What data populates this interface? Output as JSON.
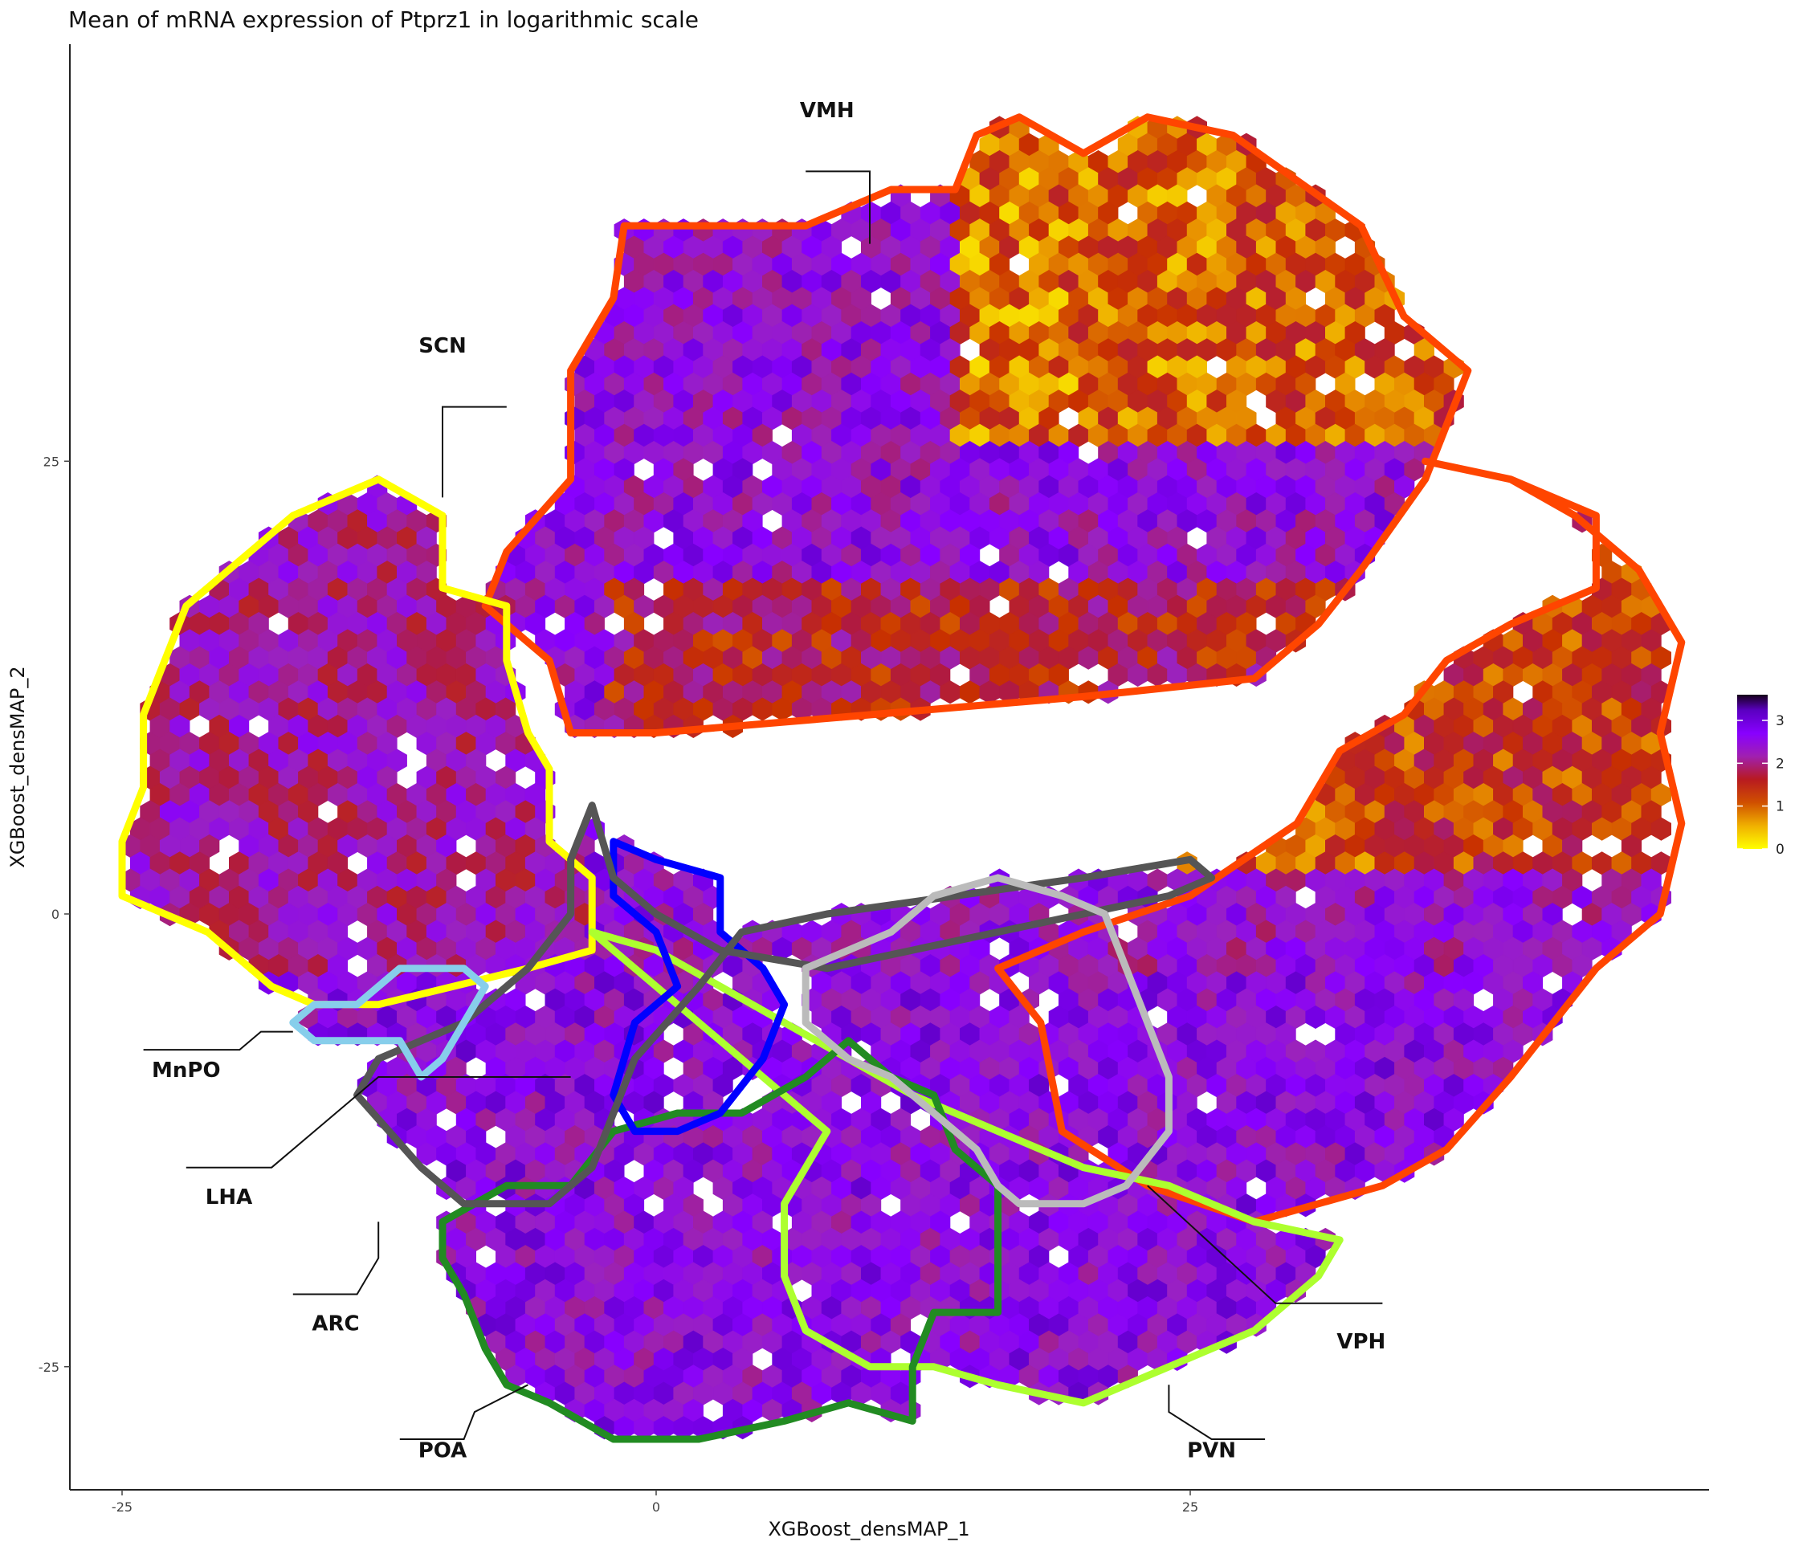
{
  "chart_data": {
    "type": "heatmap",
    "subtype": "hexbin scatter with region outlines",
    "title": "Mean of mRNA expression of Ptprz1 in logarithmic scale",
    "xlabel": "XGBoost_densMAP_1",
    "ylabel": "XGBoost_densMAP_2",
    "xlim": [
      -27.5,
      49
    ],
    "ylim": [
      -32,
      48
    ],
    "x_ticks": [
      -25,
      0,
      25
    ],
    "y_ticks": [
      -25,
      0,
      25
    ],
    "x_tick_labels": [
      "-25",
      "0",
      "25"
    ],
    "y_tick_labels": [
      "-25",
      "0",
      "25"
    ],
    "grid": false,
    "legend": {
      "placement": "right",
      "type": "colorbar",
      "range": [
        0,
        3.6
      ],
      "ticks": [
        0,
        1,
        2,
        3
      ],
      "tick_labels": [
        "0",
        "1",
        "2",
        "3"
      ],
      "colors": [
        "#ffff00",
        "#e88a00",
        "#c82a00",
        "#a819a6",
        "#8a00ff",
        "#1a0020"
      ]
    },
    "regions": [
      {
        "name": "VMH",
        "color": "#ff4500",
        "value_level": "high in center, low in top-right lobe",
        "outline": [
          [
            -1.5,
            38
          ],
          [
            7,
            38
          ],
          [
            11,
            40
          ],
          [
            14,
            40
          ],
          [
            15,
            43
          ],
          [
            17,
            44
          ],
          [
            20,
            42
          ],
          [
            23,
            44
          ],
          [
            27,
            43
          ],
          [
            33,
            38
          ],
          [
            35,
            33
          ],
          [
            38,
            30
          ],
          [
            36,
            24
          ],
          [
            33,
            19
          ],
          [
            31,
            16
          ],
          [
            28,
            13
          ],
          [
            20,
            12
          ],
          [
            10,
            11
          ],
          [
            0,
            10
          ],
          [
            -4,
            10
          ],
          [
            -5,
            14
          ],
          [
            -8,
            17
          ],
          [
            -7,
            20
          ],
          [
            -4,
            24
          ],
          [
            -4,
            30
          ],
          [
            -2,
            34
          ],
          [
            -1.5,
            38
          ]
        ]
      },
      {
        "name": "SCN",
        "color": "#ffff00",
        "value_level": "mid (purple)",
        "outline": [
          [
            -13,
            24
          ],
          [
            -17,
            22
          ],
          [
            -19,
            20
          ],
          [
            -22,
            17
          ],
          [
            -24,
            11
          ],
          [
            -24,
            7
          ],
          [
            -25,
            4
          ],
          [
            -25,
            1
          ],
          [
            -21,
            -1
          ],
          [
            -18,
            -4
          ],
          [
            -16,
            -5
          ],
          [
            -13,
            -5
          ],
          [
            -6,
            -3
          ],
          [
            -3,
            -2
          ],
          [
            -3,
            2
          ],
          [
            -5,
            4
          ],
          [
            -5,
            8
          ],
          [
            -6,
            10
          ],
          [
            -7,
            14
          ],
          [
            -7,
            17
          ],
          [
            -10,
            18
          ],
          [
            -10,
            22
          ],
          [
            -13,
            24
          ]
        ]
      },
      {
        "name": "VPH",
        "color": "#ff4500",
        "value_level": "low-mid (orange/red)",
        "outline": [
          [
            36,
            25
          ],
          [
            40,
            24
          ],
          [
            43,
            22
          ],
          [
            46,
            19
          ],
          [
            48,
            15
          ],
          [
            47,
            10
          ],
          [
            48,
            5
          ],
          [
            47,
            0
          ],
          [
            44,
            -3
          ],
          [
            42,
            -6
          ],
          [
            40,
            -9
          ],
          [
            37,
            -13
          ],
          [
            34,
            -15
          ],
          [
            28,
            -17
          ],
          [
            23,
            -15
          ],
          [
            19,
            -12
          ],
          [
            18,
            -6
          ],
          [
            16,
            -3
          ],
          [
            20,
            -1
          ],
          [
            25,
            1
          ],
          [
            30,
            5
          ],
          [
            32,
            9
          ],
          [
            35,
            11
          ],
          [
            37,
            14
          ],
          [
            40,
            16
          ],
          [
            44,
            18
          ],
          [
            44,
            22
          ],
          [
            40,
            24
          ],
          [
            36,
            25
          ]
        ]
      },
      {
        "name": "PVN",
        "color": "#adff2f",
        "value_level": "mid-high (purple)",
        "outline": [
          [
            -3,
            -1
          ],
          [
            0,
            -2
          ],
          [
            3,
            -4
          ],
          [
            6,
            -6
          ],
          [
            9,
            -8
          ],
          [
            12,
            -10
          ],
          [
            16,
            -12
          ],
          [
            20,
            -14
          ],
          [
            24,
            -15
          ],
          [
            28,
            -17
          ],
          [
            32,
            -18
          ],
          [
            31,
            -20
          ],
          [
            28,
            -23
          ],
          [
            24,
            -25
          ],
          [
            20,
            -27
          ],
          [
            16,
            -26
          ],
          [
            13,
            -25
          ],
          [
            10,
            -25
          ],
          [
            7,
            -23
          ],
          [
            6,
            -20
          ],
          [
            6,
            -16
          ],
          [
            8,
            -12
          ],
          [
            5,
            -9
          ],
          [
            2,
            -6
          ],
          [
            -1,
            -3
          ],
          [
            -3,
            -1
          ]
        ]
      },
      {
        "name": "POA",
        "color": "#228b22",
        "value_level": "mid-high (purple)",
        "outline": [
          [
            -10,
            -17
          ],
          [
            -7,
            -15
          ],
          [
            -4,
            -15
          ],
          [
            -2,
            -12
          ],
          [
            1,
            -11
          ],
          [
            4,
            -11
          ],
          [
            7,
            -9
          ],
          [
            9,
            -7
          ],
          [
            11,
            -9
          ],
          [
            13,
            -10
          ],
          [
            14,
            -13
          ],
          [
            16,
            -15
          ],
          [
            16,
            -22
          ],
          [
            13,
            -22
          ],
          [
            12,
            -25
          ],
          [
            12,
            -28
          ],
          [
            9,
            -27
          ],
          [
            6,
            -28
          ],
          [
            2,
            -29
          ],
          [
            -2,
            -29
          ],
          [
            -5,
            -27
          ],
          [
            -7,
            -26
          ],
          [
            -8,
            -24
          ],
          [
            -9,
            -21
          ],
          [
            -10,
            -19
          ],
          [
            -10,
            -17
          ]
        ]
      },
      {
        "name": "ARC",
        "color": "#0000ff",
        "value_level": "mid (purple)",
        "outline": [
          [
            -2,
            4
          ],
          [
            0,
            3
          ],
          [
            3,
            2
          ],
          [
            3,
            -1
          ],
          [
            5,
            -3
          ],
          [
            6,
            -5
          ],
          [
            5,
            -8
          ],
          [
            3,
            -11
          ],
          [
            1,
            -12
          ],
          [
            -1,
            -12
          ],
          [
            -2,
            -10
          ],
          [
            -1,
            -6
          ],
          [
            1,
            -4
          ],
          [
            0,
            -1
          ],
          [
            -2,
            1
          ],
          [
            -2,
            4
          ]
        ]
      },
      {
        "name": "LHA",
        "color": "#555555",
        "value_level": "mid (purple)",
        "outline": [
          [
            -3,
            6
          ],
          [
            -2,
            2
          ],
          [
            0,
            0
          ],
          [
            3,
            -2
          ],
          [
            8,
            -3
          ],
          [
            12,
            -2
          ],
          [
            16,
            -1
          ],
          [
            20,
            0
          ],
          [
            24,
            1
          ],
          [
            26,
            2
          ],
          [
            25,
            3
          ],
          [
            20,
            2
          ],
          [
            14,
            1
          ],
          [
            8,
            0
          ],
          [
            4,
            -1
          ],
          [
            2,
            -4
          ],
          [
            -1,
            -8
          ],
          [
            -3,
            -14
          ],
          [
            -5,
            -16
          ],
          [
            -9,
            -16
          ],
          [
            -11,
            -14
          ],
          [
            -14,
            -10
          ],
          [
            -13,
            -8
          ],
          [
            -9,
            -6
          ],
          [
            -6,
            -3
          ],
          [
            -4,
            0
          ],
          [
            -4,
            3
          ],
          [
            -3,
            6
          ]
        ]
      },
      {
        "name": "MnPO",
        "color": "#87ceeb",
        "value_level": "mid (purple)",
        "outline": [
          [
            -12,
            -3
          ],
          [
            -9,
            -3
          ],
          [
            -8,
            -4
          ],
          [
            -9,
            -6
          ],
          [
            -10,
            -8
          ],
          [
            -11,
            -9
          ],
          [
            -12,
            -7
          ],
          [
            -14,
            -7
          ],
          [
            -16,
            -7
          ],
          [
            -17,
            -6
          ],
          [
            -16,
            -5
          ],
          [
            -14,
            -5
          ],
          [
            -12,
            -3
          ]
        ]
      },
      {
        "name": "unlabeled (grey)",
        "color": "#bbbbbb",
        "value_level": "mid (purple)",
        "outline": [
          [
            13,
            1
          ],
          [
            16,
            2
          ],
          [
            19,
            1
          ],
          [
            21,
            0
          ],
          [
            22,
            -3
          ],
          [
            23,
            -6
          ],
          [
            24,
            -9
          ],
          [
            24,
            -12
          ],
          [
            22,
            -15
          ],
          [
            20,
            -16
          ],
          [
            17,
            -16
          ],
          [
            16,
            -15
          ],
          [
            15,
            -13
          ],
          [
            14,
            -12
          ],
          [
            13,
            -11
          ],
          [
            11,
            -9
          ],
          [
            9,
            -8
          ],
          [
            7,
            -6
          ],
          [
            7,
            -3
          ],
          [
            9,
            -2
          ],
          [
            11,
            -1
          ],
          [
            13,
            1
          ]
        ]
      }
    ],
    "region_labels": [
      {
        "text": "VMH",
        "x": 8,
        "y": 44
      },
      {
        "text": "SCN",
        "x": -10,
        "y": 31
      },
      {
        "text": "MnPO",
        "x": -22,
        "y": -9
      },
      {
        "text": "LHA",
        "x": -20,
        "y": -16
      },
      {
        "text": "ARC",
        "x": -15,
        "y": -23
      },
      {
        "text": "POA",
        "x": -10,
        "y": -30
      },
      {
        "text": "VPH",
        "x": 33,
        "y": -24
      },
      {
        "text": "PVN",
        "x": 26,
        "y": -30
      }
    ]
  }
}
